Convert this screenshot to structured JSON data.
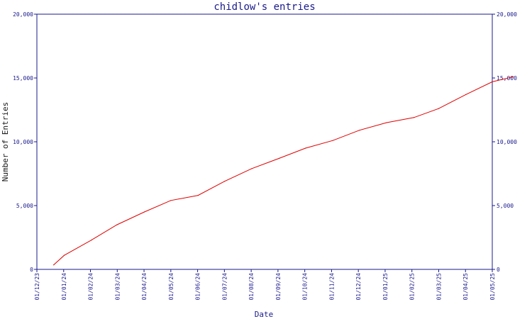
{
  "chart_data": {
    "type": "line",
    "title": "chidlow's entries",
    "xlabel": "Date",
    "ylabel": "Number of Entries",
    "x_tick_labels": [
      "01/12/23",
      "01/01/24",
      "01/02/24",
      "01/03/24",
      "01/04/24",
      "01/05/24",
      "01/06/24",
      "01/07/24",
      "01/08/24",
      "01/09/24",
      "01/10/24",
      "01/11/24",
      "01/12/24",
      "01/01/25",
      "01/02/25",
      "01/03/25",
      "01/04/25",
      "01/05/25"
    ],
    "y_ticks": [
      0,
      5000,
      10000,
      15000,
      20000
    ],
    "y_tick_labels": [
      "0",
      "5,000",
      "10,000",
      "15,000",
      "20,000"
    ],
    "ylim": [
      0,
      20000
    ],
    "grid": false,
    "colors": {
      "axis": "#1a1a8c",
      "line": "#e00000",
      "text": "#1a1a8c"
    },
    "series": [
      {
        "x": [
          "2023-12-20",
          "2024-01-01",
          "2024-02-01",
          "2024-03-01",
          "2024-04-01",
          "2024-05-01",
          "2024-06-01",
          "2024-07-01",
          "2024-08-01",
          "2024-09-01",
          "2024-10-01",
          "2024-11-01",
          "2024-12-01",
          "2025-01-01",
          "2025-02-01",
          "2025-03-01",
          "2025-04-01",
          "2025-05-01",
          "2025-05-25"
        ],
        "y": [
          350,
          1100,
          2300,
          3500,
          4500,
          5400,
          5800,
          6900,
          7900,
          8700,
          9500,
          10100,
          10900,
          11500,
          11900,
          12600,
          13700,
          14700,
          15100
        ]
      }
    ]
  }
}
